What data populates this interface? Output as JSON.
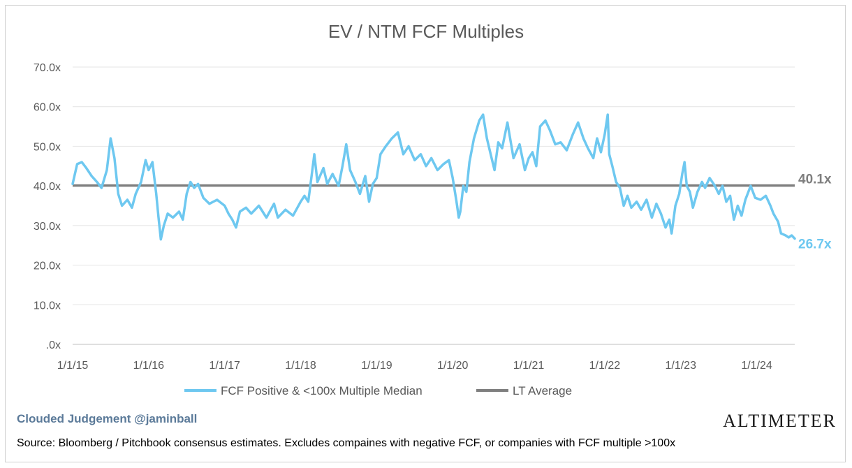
{
  "chart_data": {
    "type": "line",
    "title": "EV / NTM FCF Multiples",
    "xlabel": "",
    "ylabel": "",
    "ylim": [
      0,
      70
    ],
    "y_ticks": [
      ".0x",
      "10.0x",
      "20.0x",
      "30.0x",
      "40.0x",
      "50.0x",
      "60.0x",
      "70.0x"
    ],
    "x_ticks": [
      "1/1/15",
      "1/1/16",
      "1/1/17",
      "1/1/18",
      "1/1/19",
      "1/1/20",
      "1/1/21",
      "1/1/22",
      "1/1/23",
      "1/1/24"
    ],
    "grid": true,
    "legend": "bottom",
    "series": [
      {
        "name": "FCF Positive & <100x Multiple Median",
        "color": "#6ec8f0",
        "end_label": "26.7x",
        "points": [
          [
            2015.0,
            40.5
          ],
          [
            2015.06,
            45.5
          ],
          [
            2015.12,
            46.0
          ],
          [
            2015.18,
            44.5
          ],
          [
            2015.25,
            42.5
          ],
          [
            2015.32,
            41.0
          ],
          [
            2015.38,
            39.5
          ],
          [
            2015.45,
            44.0
          ],
          [
            2015.5,
            52.0
          ],
          [
            2015.55,
            47.0
          ],
          [
            2015.6,
            38.0
          ],
          [
            2015.65,
            35.0
          ],
          [
            2015.72,
            36.5
          ],
          [
            2015.78,
            34.5
          ],
          [
            2015.83,
            38.0
          ],
          [
            2015.9,
            41.0
          ],
          [
            2015.96,
            46.5
          ],
          [
            2016.0,
            44.0
          ],
          [
            2016.05,
            46.0
          ],
          [
            2016.1,
            38.0
          ],
          [
            2016.13,
            32.0
          ],
          [
            2016.16,
            26.5
          ],
          [
            2016.2,
            30.0
          ],
          [
            2016.25,
            33.0
          ],
          [
            2016.32,
            32.0
          ],
          [
            2016.4,
            33.5
          ],
          [
            2016.45,
            31.5
          ],
          [
            2016.5,
            38.0
          ],
          [
            2016.55,
            41.0
          ],
          [
            2016.6,
            39.5
          ],
          [
            2016.65,
            40.5
          ],
          [
            2016.72,
            37.0
          ],
          [
            2016.8,
            35.5
          ],
          [
            2016.9,
            36.5
          ],
          [
            2017.0,
            35.0
          ],
          [
            2017.05,
            33.0
          ],
          [
            2017.1,
            31.5
          ],
          [
            2017.15,
            29.5
          ],
          [
            2017.2,
            33.5
          ],
          [
            2017.28,
            34.5
          ],
          [
            2017.35,
            33.0
          ],
          [
            2017.45,
            35.0
          ],
          [
            2017.55,
            32.0
          ],
          [
            2017.65,
            35.5
          ],
          [
            2017.7,
            32.0
          ],
          [
            2017.8,
            34.0
          ],
          [
            2017.9,
            32.5
          ],
          [
            2018.0,
            36.0
          ],
          [
            2018.05,
            37.5
          ],
          [
            2018.1,
            36.0
          ],
          [
            2018.14,
            42.0
          ],
          [
            2018.18,
            48.0
          ],
          [
            2018.22,
            41.0
          ],
          [
            2018.3,
            44.5
          ],
          [
            2018.35,
            40.5
          ],
          [
            2018.42,
            43.0
          ],
          [
            2018.5,
            40.0
          ],
          [
            2018.55,
            45.0
          ],
          [
            2018.6,
            50.5
          ],
          [
            2018.65,
            44.0
          ],
          [
            2018.72,
            41.0
          ],
          [
            2018.78,
            38.0
          ],
          [
            2018.85,
            42.5
          ],
          [
            2018.9,
            36.0
          ],
          [
            2018.95,
            40.5
          ],
          [
            2019.0,
            42.0
          ],
          [
            2019.05,
            48.0
          ],
          [
            2019.12,
            50.0
          ],
          [
            2019.2,
            52.0
          ],
          [
            2019.28,
            53.5
          ],
          [
            2019.35,
            48.0
          ],
          [
            2019.42,
            50.0
          ],
          [
            2019.5,
            46.5
          ],
          [
            2019.58,
            48.0
          ],
          [
            2019.65,
            45.0
          ],
          [
            2019.72,
            47.0
          ],
          [
            2019.8,
            44.0
          ],
          [
            2019.88,
            45.5
          ],
          [
            2019.95,
            46.5
          ],
          [
            2020.0,
            42.0
          ],
          [
            2020.05,
            36.0
          ],
          [
            2020.08,
            32.0
          ],
          [
            2020.1,
            33.5
          ],
          [
            2020.14,
            40.0
          ],
          [
            2020.18,
            38.5
          ],
          [
            2020.22,
            46.0
          ],
          [
            2020.28,
            52.0
          ],
          [
            2020.35,
            56.5
          ],
          [
            2020.4,
            58.0
          ],
          [
            2020.45,
            52.0
          ],
          [
            2020.5,
            48.0
          ],
          [
            2020.55,
            44.0
          ],
          [
            2020.6,
            51.0
          ],
          [
            2020.65,
            49.5
          ],
          [
            2020.72,
            56.0
          ],
          [
            2020.8,
            47.0
          ],
          [
            2020.88,
            50.5
          ],
          [
            2020.95,
            44.0
          ],
          [
            2021.0,
            47.0
          ],
          [
            2021.05,
            48.5
          ],
          [
            2021.1,
            45.0
          ],
          [
            2021.15,
            55.0
          ],
          [
            2021.22,
            56.5
          ],
          [
            2021.28,
            54.0
          ],
          [
            2021.35,
            50.5
          ],
          [
            2021.42,
            51.0
          ],
          [
            2021.5,
            49.0
          ],
          [
            2021.58,
            53.0
          ],
          [
            2021.65,
            56.0
          ],
          [
            2021.72,
            52.0
          ],
          [
            2021.78,
            49.5
          ],
          [
            2021.85,
            47.0
          ],
          [
            2021.9,
            52.0
          ],
          [
            2021.95,
            48.5
          ],
          [
            2022.0,
            53.0
          ],
          [
            2022.04,
            58.0
          ],
          [
            2022.06,
            48.0
          ],
          [
            2022.1,
            45.0
          ],
          [
            2022.15,
            41.0
          ],
          [
            2022.2,
            39.5
          ],
          [
            2022.25,
            35.0
          ],
          [
            2022.3,
            37.5
          ],
          [
            2022.35,
            34.5
          ],
          [
            2022.42,
            36.0
          ],
          [
            2022.48,
            34.0
          ],
          [
            2022.55,
            36.5
          ],
          [
            2022.62,
            32.0
          ],
          [
            2022.68,
            35.5
          ],
          [
            2022.74,
            33.0
          ],
          [
            2022.8,
            29.5
          ],
          [
            2022.85,
            31.5
          ],
          [
            2022.88,
            28.0
          ],
          [
            2022.93,
            35.0
          ],
          [
            2022.98,
            38.0
          ],
          [
            2023.02,
            43.0
          ],
          [
            2023.05,
            46.0
          ],
          [
            2023.08,
            40.0
          ],
          [
            2023.12,
            38.5
          ],
          [
            2023.16,
            34.5
          ],
          [
            2023.22,
            38.5
          ],
          [
            2023.28,
            41.0
          ],
          [
            2023.32,
            39.5
          ],
          [
            2023.38,
            42.0
          ],
          [
            2023.45,
            40.0
          ],
          [
            2023.5,
            38.0
          ],
          [
            2023.55,
            40.0
          ],
          [
            2023.6,
            36.0
          ],
          [
            2023.65,
            37.5
          ],
          [
            2023.7,
            31.5
          ],
          [
            2023.75,
            35.0
          ],
          [
            2023.8,
            32.5
          ],
          [
            2023.85,
            36.5
          ],
          [
            2023.92,
            40.0
          ],
          [
            2023.98,
            37.0
          ],
          [
            2024.05,
            36.5
          ],
          [
            2024.12,
            37.5
          ],
          [
            2024.18,
            35.0
          ],
          [
            2024.22,
            33.0
          ],
          [
            2024.28,
            31.0
          ],
          [
            2024.32,
            28.0
          ],
          [
            2024.38,
            27.5
          ],
          [
            2024.42,
            27.0
          ],
          [
            2024.46,
            27.5
          ],
          [
            2024.5,
            26.7
          ]
        ]
      },
      {
        "name": "LT Average",
        "color": "#7f7f7f",
        "end_label": "40.1x",
        "value": 40.1
      }
    ]
  },
  "footer": {
    "watermark": "Clouded Judgement @jaminball",
    "brand": "ALTIMETER",
    "source": "Source: Bloomberg / Pitchbook consensus estimates. Excludes compaines with negative FCF, or companies with FCF multiple >100x"
  }
}
